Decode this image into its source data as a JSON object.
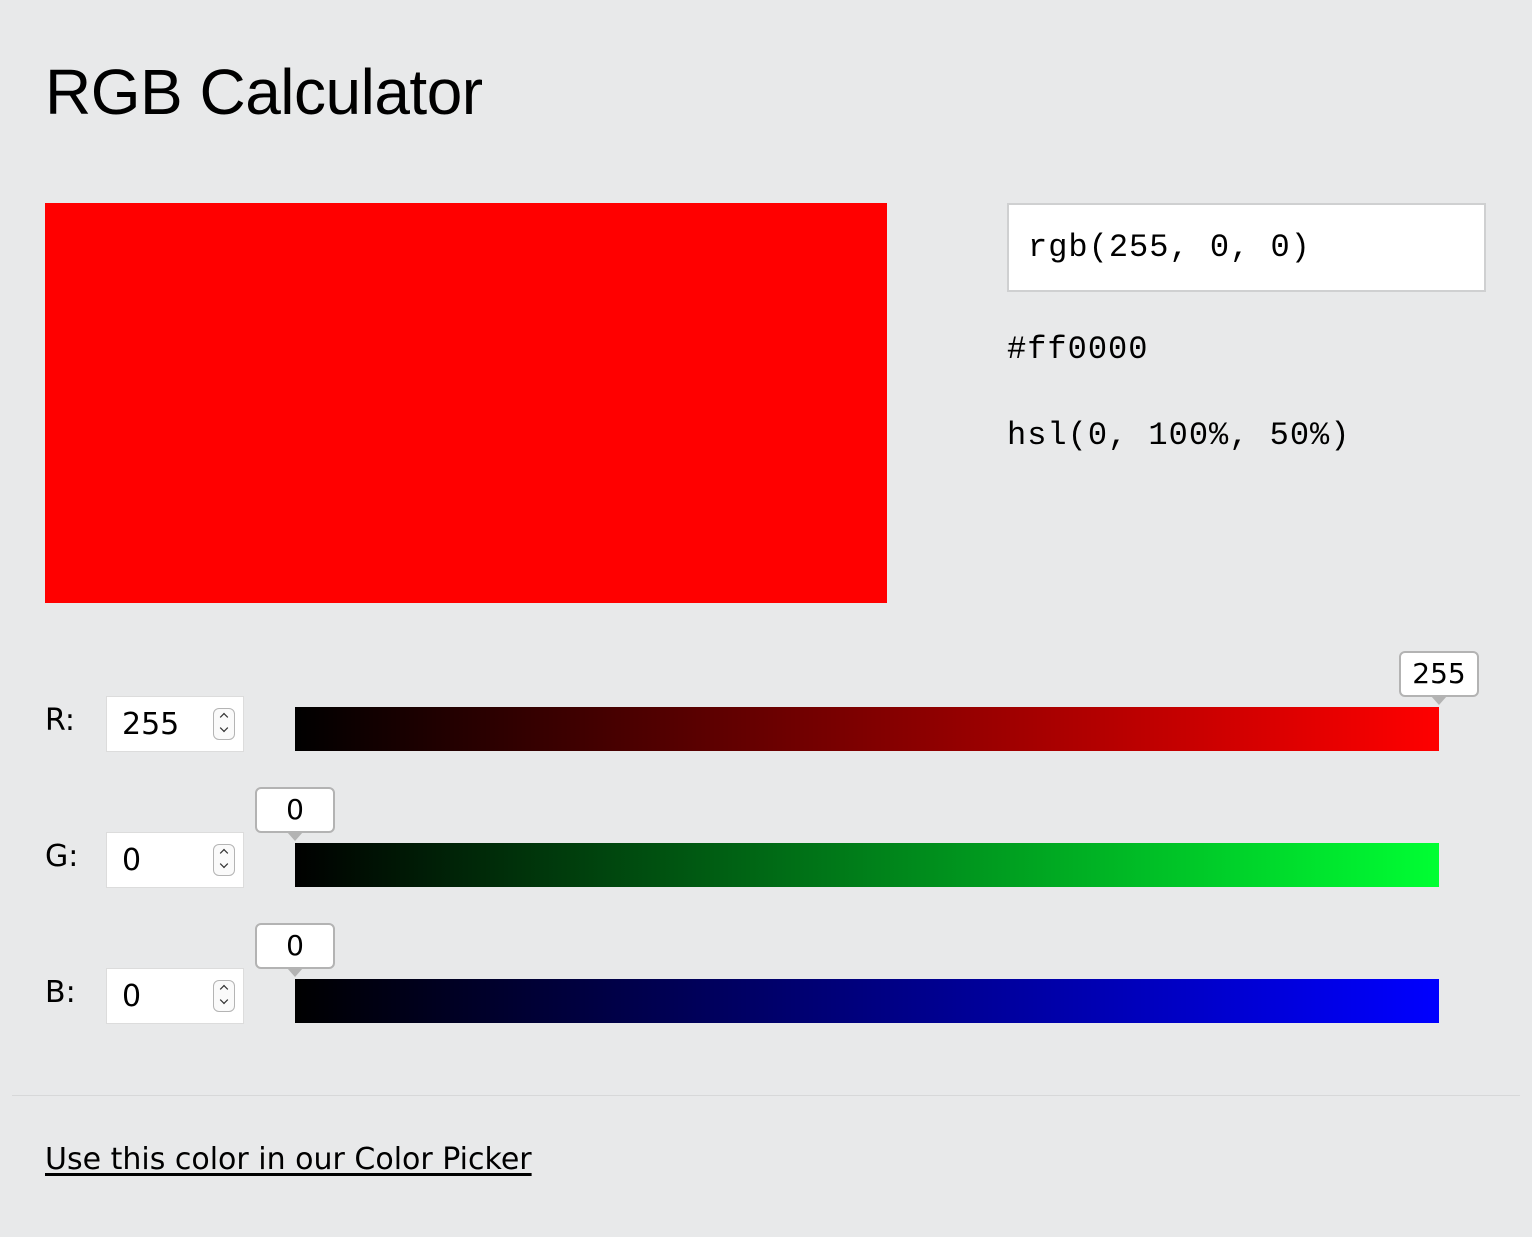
{
  "title": "RGB Calculator",
  "swatch_color": "#ff0000",
  "outputs": {
    "rgb": "rgb(255, 0, 0)",
    "hex": "#ff0000",
    "hsl": "hsl(0, 100%, 50%)"
  },
  "channels": {
    "r": {
      "label": "R:",
      "value": "255",
      "tooltip": "255",
      "level": 255,
      "max": 255,
      "color": "#ff0000"
    },
    "g": {
      "label": "G:",
      "value": "0",
      "tooltip": "0",
      "level": 0,
      "max": 255,
      "color": "#00ff33"
    },
    "b": {
      "label": "B:",
      "value": "0",
      "tooltip": "0",
      "level": 0,
      "max": 255,
      "color": "#0000ff"
    }
  },
  "footer": {
    "link_text": "Use this color in our Color Picker"
  }
}
